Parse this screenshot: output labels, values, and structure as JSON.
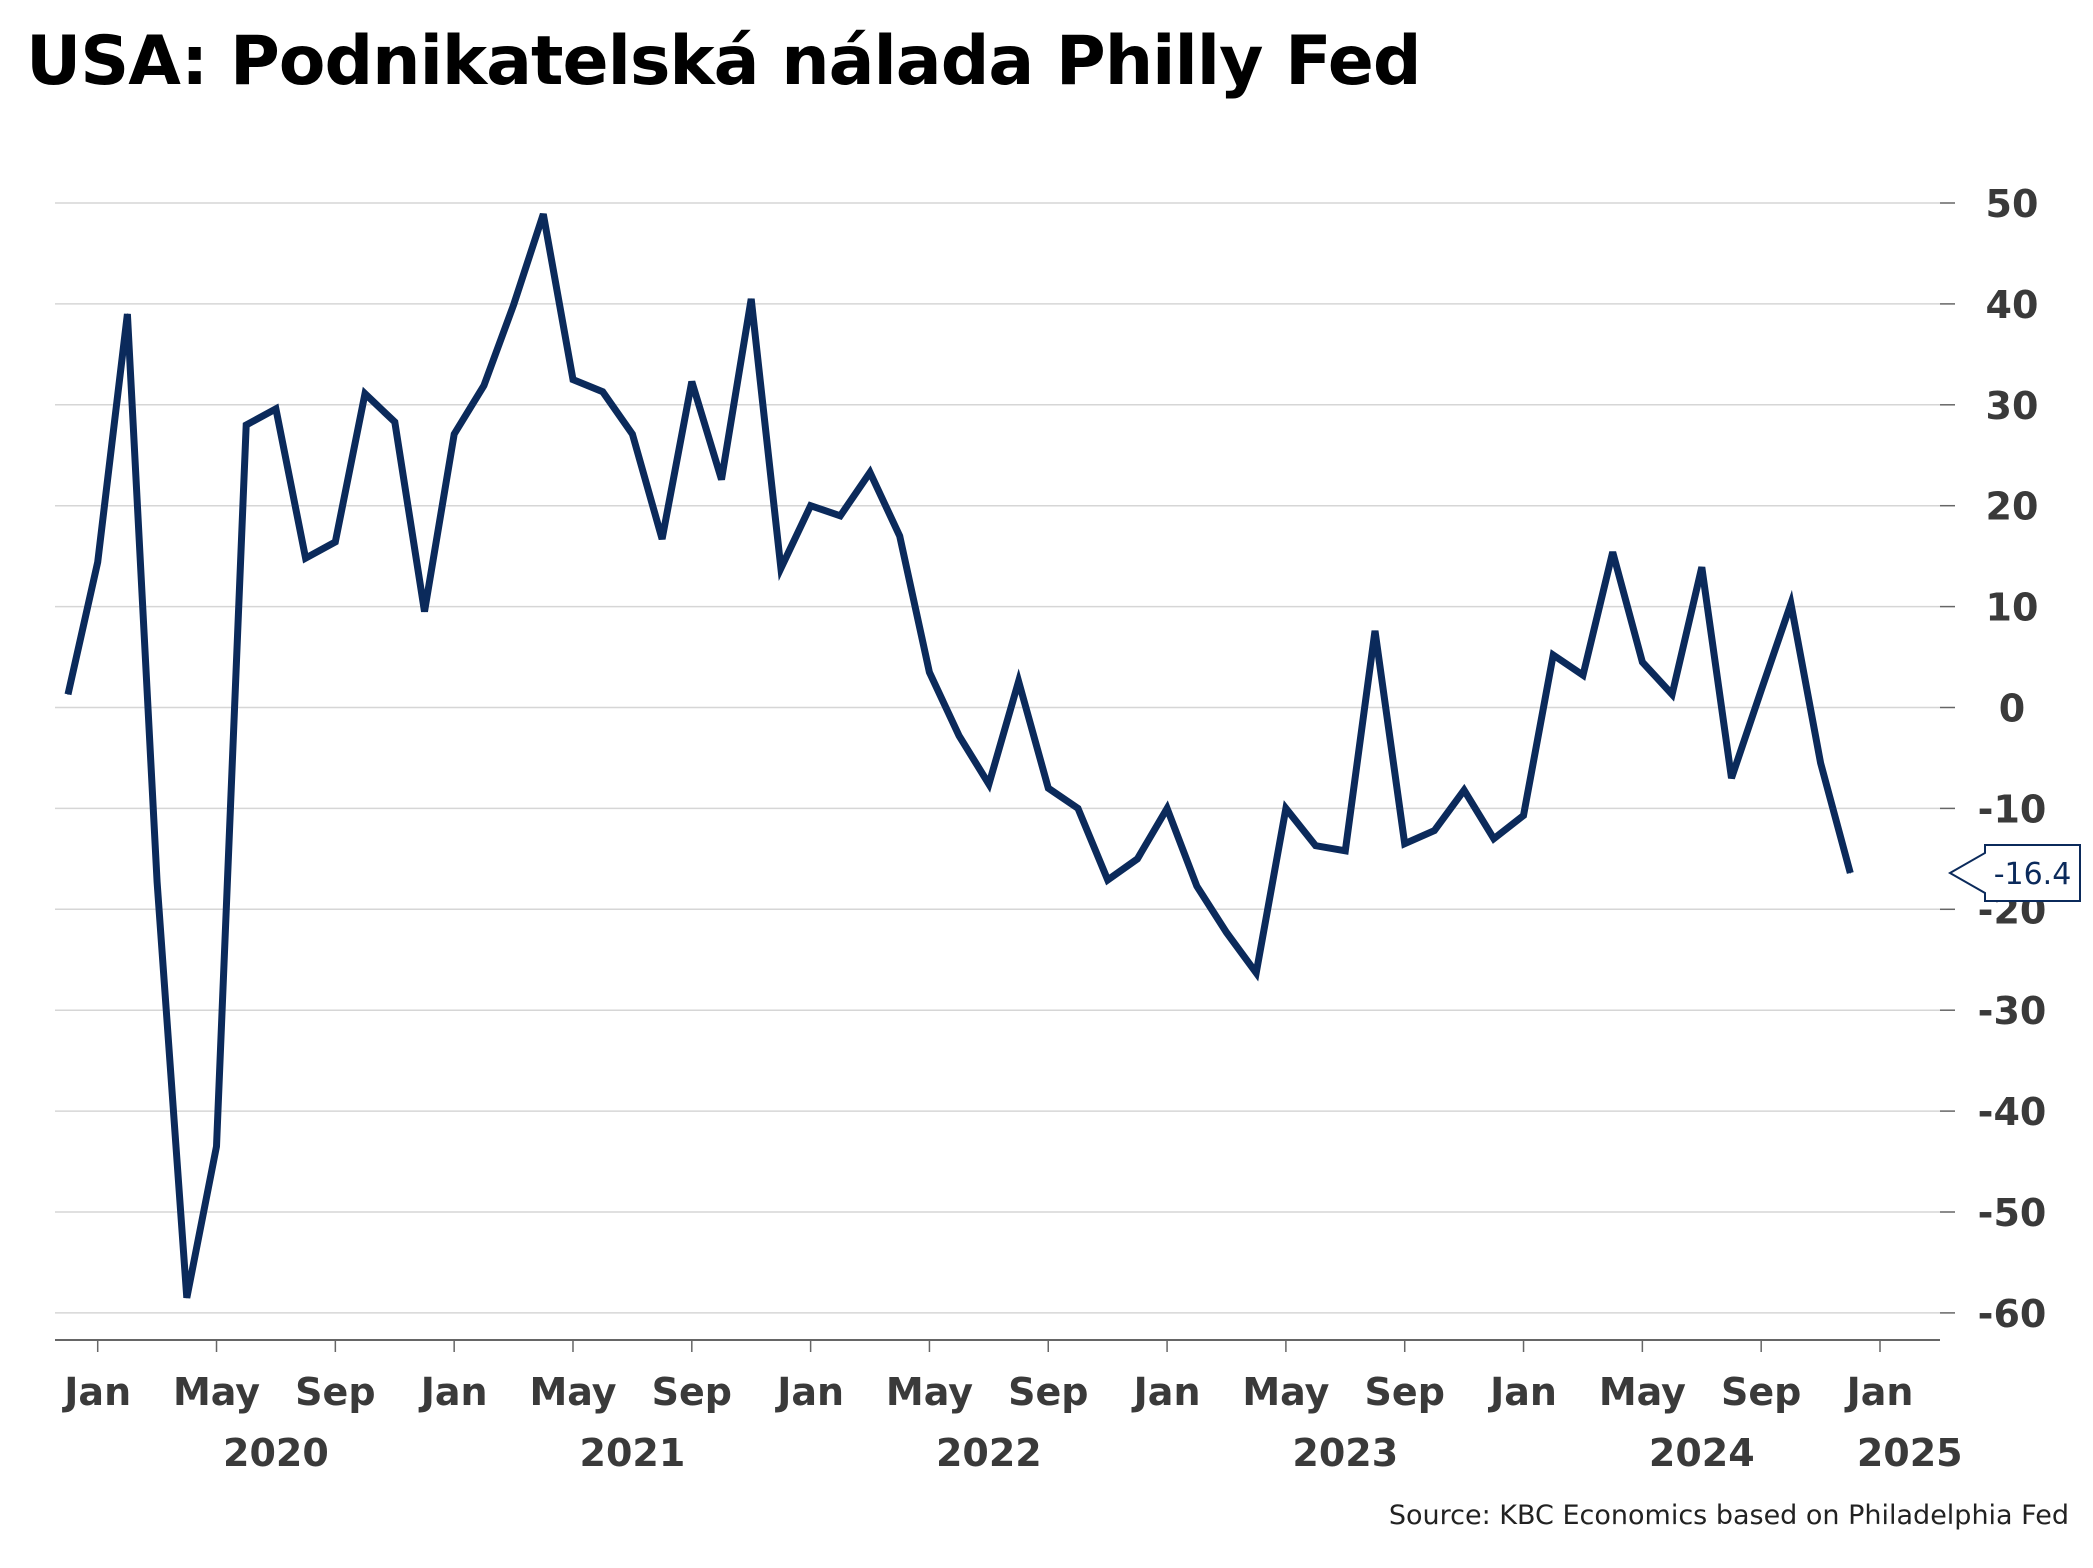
{
  "chart_data": {
    "type": "line",
    "title": "USA: Podnikatelská nálada Philly Fed",
    "source": "Source: KBC Economics based on Philadelphia Fed",
    "ylim": [
      -64,
      53
    ],
    "yticks": [
      50,
      40,
      30,
      20,
      10,
      0,
      -10,
      -20,
      -30,
      -40,
      -50,
      -60
    ],
    "ytick_labels": [
      "50",
      "40",
      "30",
      "20",
      "10",
      "0",
      "-10",
      "-20",
      "-30",
      "-40",
      "-50",
      "-60"
    ],
    "grid": true,
    "y_axis_side": "right",
    "x_range": [
      "2019-12",
      "2025-01"
    ],
    "xticks": [
      "2020-01",
      "2020-05",
      "2020-09",
      "2021-01",
      "2021-05",
      "2021-09",
      "2022-01",
      "2022-05",
      "2022-09",
      "2023-01",
      "2023-05",
      "2023-09",
      "2024-01",
      "2024-05",
      "2024-09",
      "2025-01"
    ],
    "xtick_labels": [
      "Jan",
      "May",
      "Sep",
      "Jan",
      "May",
      "Sep",
      "Jan",
      "May",
      "Sep",
      "Jan",
      "May",
      "Sep",
      "Jan",
      "May",
      "Sep",
      "Jan"
    ],
    "year_labels": [
      {
        "label": "2020",
        "at": "2020-07"
      },
      {
        "label": "2021",
        "at": "2021-07"
      },
      {
        "label": "2022",
        "at": "2022-07"
      },
      {
        "label": "2023",
        "at": "2023-07"
      },
      {
        "label": "2024",
        "at": "2024-07"
      },
      {
        "label": "2025",
        "at": "2025-02"
      }
    ],
    "series": [
      {
        "color": "#0b2a5b",
        "x": [
          "2019-12",
          "2020-01",
          "2020-02",
          "2020-03",
          "2020-04",
          "2020-05",
          "2020-06",
          "2020-07",
          "2020-08",
          "2020-09",
          "2020-10",
          "2020-11",
          "2020-12",
          "2021-01",
          "2021-02",
          "2021-03",
          "2021-04",
          "2021-05",
          "2021-06",
          "2021-07",
          "2021-08",
          "2021-09",
          "2021-10",
          "2021-11",
          "2021-12",
          "2022-01",
          "2022-02",
          "2022-03",
          "2022-04",
          "2022-05",
          "2022-06",
          "2022-07",
          "2022-08",
          "2022-09",
          "2022-10",
          "2022-11",
          "2022-12",
          "2023-01",
          "2023-02",
          "2023-03",
          "2023-04",
          "2023-05",
          "2023-06",
          "2023-07",
          "2023-08",
          "2023-09",
          "2023-10",
          "2023-11",
          "2023-12",
          "2024-01",
          "2024-02",
          "2024-03",
          "2024-04",
          "2024-05",
          "2024-06",
          "2024-07",
          "2024-08",
          "2024-09",
          "2024-10",
          "2024-11",
          "2024-12"
        ],
        "values": [
          1.3,
          14.4,
          39.0,
          -17.3,
          -58.5,
          -43.5,
          28.0,
          29.6,
          14.8,
          16.4,
          31.1,
          28.3,
          9.5,
          27.1,
          31.9,
          39.9,
          48.9,
          32.5,
          31.3,
          27.1,
          16.7,
          32.3,
          22.6,
          40.5,
          13.8,
          20.0,
          19.0,
          23.3,
          17.0,
          3.5,
          -2.8,
          -7.6,
          2.6,
          -8.0,
          -10.0,
          -17.1,
          -15.0,
          -10.0,
          -17.7,
          -22.3,
          -26.3,
          -10.0,
          -13.7,
          -14.2,
          7.6,
          -13.5,
          -12.2,
          -8.2,
          -13.0,
          -10.7,
          5.2,
          3.2,
          15.4,
          4.5,
          1.3,
          13.9,
          -7.0,
          1.7,
          10.3,
          -5.5,
          -16.4
        ]
      }
    ],
    "annotations": [
      {
        "text": "-16.4",
        "series_point": "2024-12"
      }
    ]
  }
}
